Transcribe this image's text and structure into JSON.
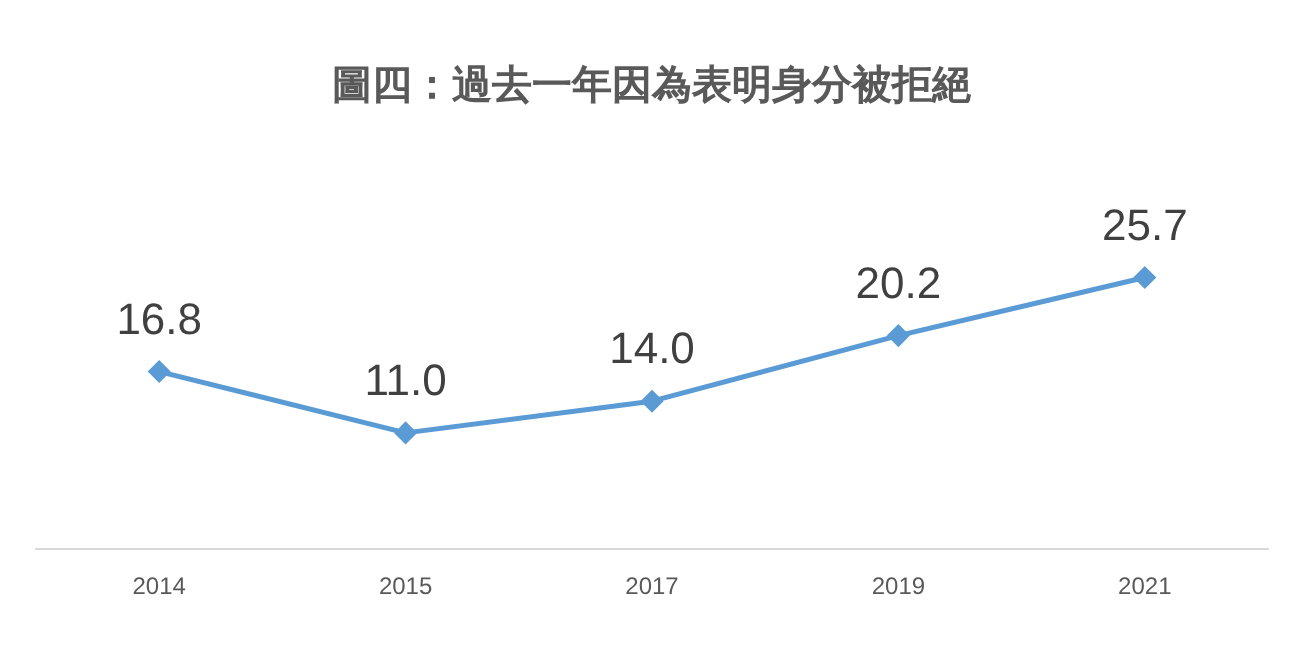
{
  "chart_data": {
    "type": "line",
    "title": "圖四：過去一年因為表明身分被拒絕",
    "categories": [
      "2014",
      "2015",
      "2017",
      "2019",
      "2021"
    ],
    "series": [
      {
        "color": "#5b9bd5",
        "values": [
          16.8,
          11.0,
          14.0,
          20.2,
          25.7
        ],
        "value_labels": [
          "16.8",
          "11.0",
          "14.0",
          "20.2",
          "25.7"
        ]
      }
    ],
    "tick_labels": "x",
    "grid": false,
    "legend": false,
    "marker": "diamond",
    "line_style": "solid"
  }
}
